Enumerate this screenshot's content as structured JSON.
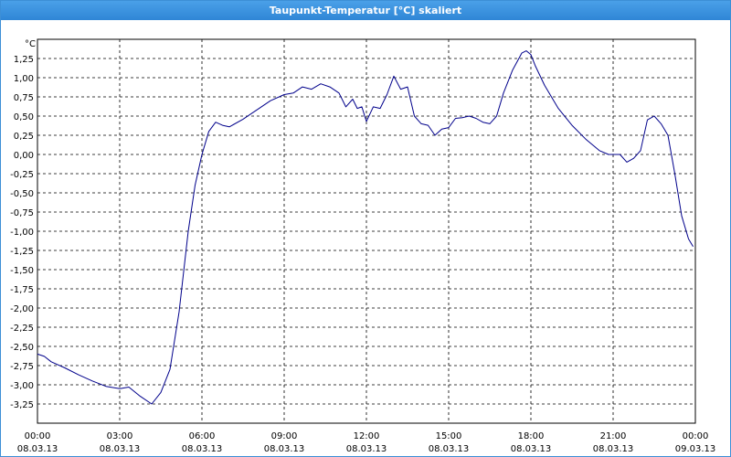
{
  "window": {
    "title": "Taupunkt-Temperatur [°C] skaliert"
  },
  "chart_data": {
    "type": "line",
    "title": "Taupunkt-Temperatur [°C] skaliert",
    "ylabel": "°C",
    "xlabel": "",
    "ylim": [
      -3.5,
      1.5
    ],
    "y_ticks": [
      "1,25",
      "1,00",
      "0,75",
      "0,50",
      "0,25",
      "0,00",
      "-0,25",
      "-0,50",
      "-0,75",
      "-1,00",
      "-1,25",
      "-1,50",
      "-1,75",
      "-2,00",
      "-2,25",
      "-2,50",
      "-2,75",
      "-3,00",
      "-3,25"
    ],
    "x_ticks": [
      {
        "time": "00:00",
        "date": "08.03.13"
      },
      {
        "time": "03:00",
        "date": "08.03.13"
      },
      {
        "time": "06:00",
        "date": "08.03.13"
      },
      {
        "time": "09:00",
        "date": "08.03.13"
      },
      {
        "time": "12:00",
        "date": "08.03.13"
      },
      {
        "time": "15:00",
        "date": "08.03.13"
      },
      {
        "time": "18:00",
        "date": "08.03.13"
      },
      {
        "time": "21:00",
        "date": "08.03.13"
      },
      {
        "time": "00:00",
        "date": "09.03.13"
      }
    ],
    "grid": true,
    "line_color": "#00008b",
    "series": [
      {
        "x": [
          "00:00",
          "00:15",
          "00:30",
          "01:00",
          "01:30",
          "02:00",
          "02:30",
          "03:00",
          "03:20",
          "03:45",
          "04:10",
          "04:30",
          "04:50",
          "05:10",
          "05:30",
          "05:45",
          "06:00",
          "06:15",
          "06:30",
          "06:45",
          "07:00",
          "07:30",
          "08:00",
          "08:30",
          "09:00",
          "09:20",
          "09:40",
          "10:00",
          "10:20",
          "10:40",
          "11:00",
          "11:15",
          "11:30",
          "11:40",
          "11:50",
          "12:00",
          "12:15",
          "12:30",
          "12:45",
          "13:00",
          "13:15",
          "13:30",
          "13:45",
          "14:00",
          "14:15",
          "14:30",
          "14:45",
          "15:00",
          "15:15",
          "15:30",
          "15:45",
          "16:00",
          "16:15",
          "16:30",
          "16:45",
          "17:00",
          "17:20",
          "17:40",
          "17:50",
          "18:00",
          "18:10",
          "18:30",
          "19:00",
          "19:30",
          "20:00",
          "20:30",
          "20:50",
          "21:00",
          "21:15",
          "21:30",
          "21:45",
          "22:00",
          "22:15",
          "22:30",
          "22:45",
          "23:00",
          "23:15",
          "23:30",
          "23:45",
          "23:55"
        ],
        "y": [
          -2.6,
          -2.63,
          -2.7,
          -2.78,
          -2.87,
          -2.95,
          -3.02,
          -3.05,
          -3.03,
          -3.15,
          -3.25,
          -3.1,
          -2.8,
          -2.05,
          -1.0,
          -0.4,
          0.0,
          0.3,
          0.42,
          0.38,
          0.36,
          0.46,
          0.58,
          0.7,
          0.78,
          0.8,
          0.88,
          0.85,
          0.92,
          0.88,
          0.8,
          0.62,
          0.72,
          0.6,
          0.62,
          0.43,
          0.62,
          0.6,
          0.78,
          1.02,
          0.85,
          0.88,
          0.5,
          0.4,
          0.38,
          0.25,
          0.33,
          0.35,
          0.47,
          0.48,
          0.5,
          0.47,
          0.42,
          0.4,
          0.5,
          0.8,
          1.1,
          1.32,
          1.35,
          1.3,
          1.15,
          0.9,
          0.6,
          0.38,
          0.2,
          0.05,
          0.0,
          0.0,
          0.0,
          -0.1,
          -0.05,
          0.05,
          0.45,
          0.5,
          0.4,
          0.25,
          -0.25,
          -0.8,
          -1.1,
          -1.2
        ]
      }
    ]
  }
}
